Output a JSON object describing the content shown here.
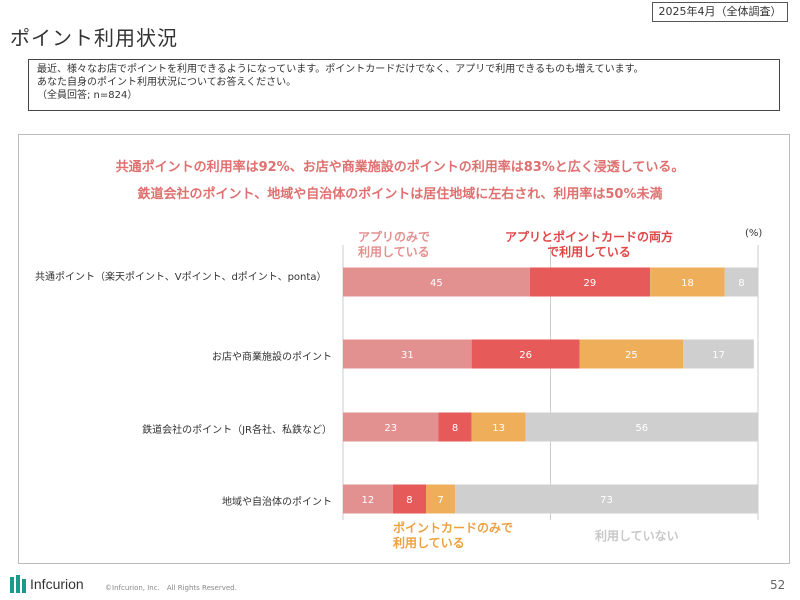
{
  "header": {
    "survey_tag": "2025年4月（全体調査）",
    "title": "ポイント利用状況"
  },
  "question": {
    "line1": "最近、様々なお店でポイントを利用できるようになっています。ポイントカードだけでなく、アプリで利用できるものも増えています。",
    "line2": "あなた自身のポイント利用状況についてお答えください。",
    "line3": "（全員回答; n=824）"
  },
  "headlines": {
    "line1": "共通ポイントの利用率は92%、お店や商業施設のポイントの利用率は83%と広く浸透している。",
    "line2": "鉄道会社のポイント、地域や自治体のポイントは居住地域に左右され、利用率は50%未満"
  },
  "footer": {
    "logo": "Infcurion",
    "copyright": "©Infcurion, Inc.　All Rights Reserved.",
    "page_number": "52"
  },
  "chart_data": {
    "type": "bar",
    "orientation": "horizontal",
    "stacked": true,
    "unit_label": "(%)",
    "xlim": [
      0,
      100
    ],
    "categories": [
      "共通ポイント（楽天ポイント、Vポイント、dポイント、ponta）",
      "お店や商業施設のポイント",
      "鉄道会社のポイント（JR各社、私鉄など）",
      "地域や自治体のポイント"
    ],
    "series": [
      {
        "name": "アプリのみで利用している",
        "color": "#e39090",
        "values": [
          45,
          31,
          23,
          12
        ]
      },
      {
        "name": "アプリとポイントカードの両方で利用している",
        "color": "#e65a5a",
        "values": [
          29,
          26,
          8,
          8
        ]
      },
      {
        "name": "ポイントカードのみで利用している",
        "color": "#eeae5a",
        "values": [
          18,
          25,
          13,
          7
        ]
      },
      {
        "name": "利用していない",
        "color": "#cfcfcf",
        "values": [
          8,
          17,
          56,
          73
        ]
      }
    ],
    "legend_labels": [
      {
        "line1": "アプリのみで",
        "line2": "利用している",
        "color": "#e39090"
      },
      {
        "line1": "アプリとポイントカードの両方",
        "line2": "で利用している",
        "color": "#e04545"
      },
      {
        "line1": "ポイントカードのみで",
        "line2": "利用している",
        "color": "#eea040"
      },
      {
        "line1": "利用していない",
        "line2": "",
        "color": "#c8c8c8"
      }
    ]
  }
}
